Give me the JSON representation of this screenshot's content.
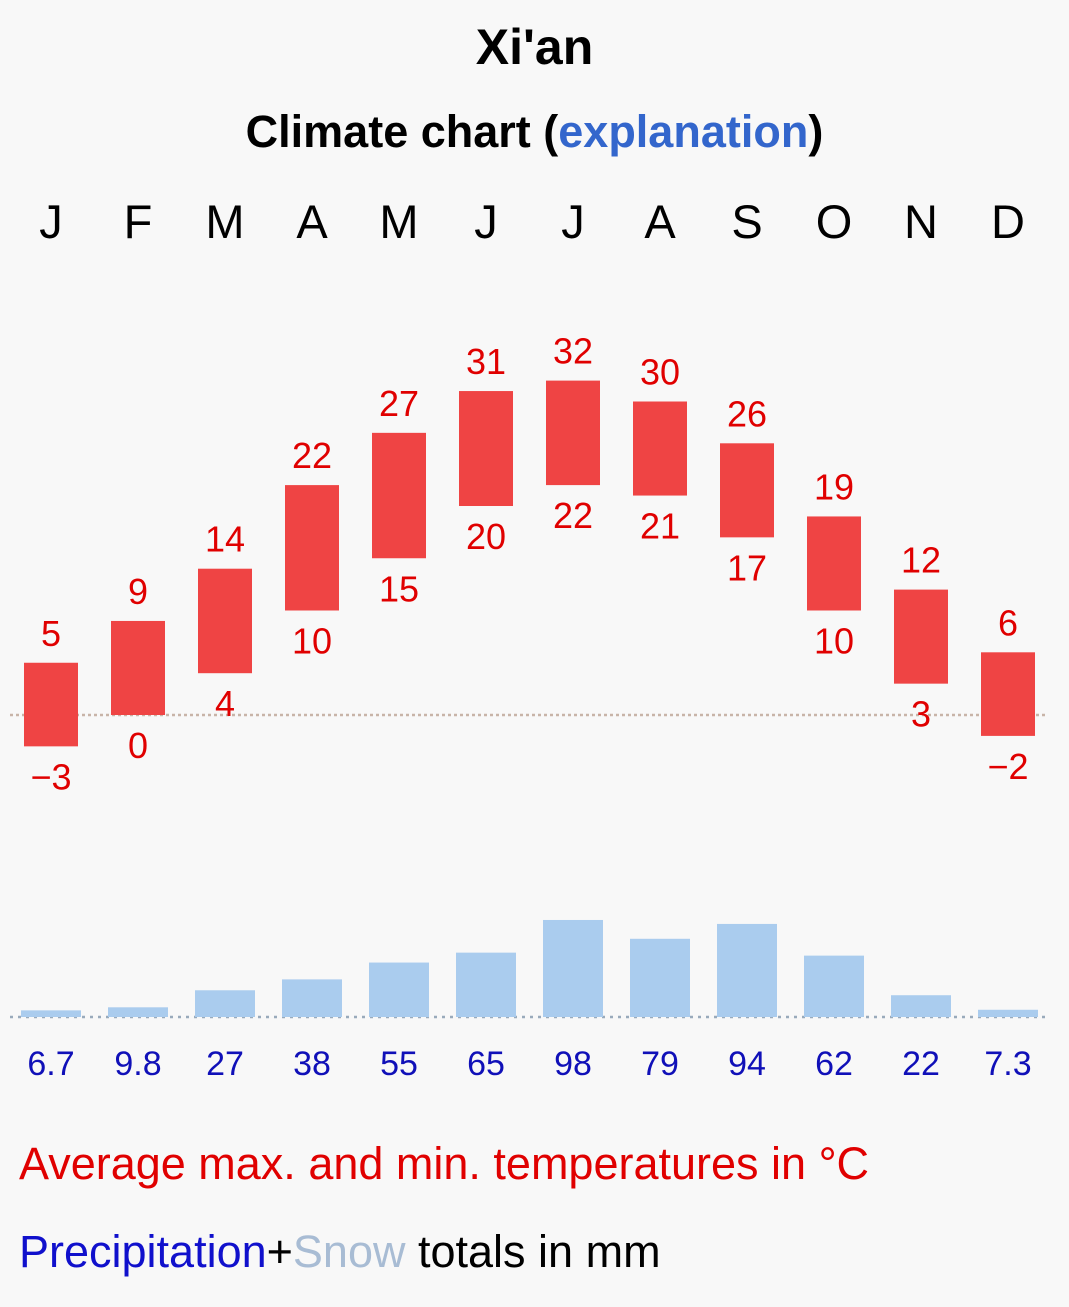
{
  "title": "Xi'an",
  "subtitle": {
    "prefix": "Climate chart (",
    "link": "explanation",
    "suffix": ")"
  },
  "chart_data": {
    "type": "bar",
    "categories": [
      "J",
      "F",
      "M",
      "A",
      "M",
      "J",
      "J",
      "A",
      "S",
      "O",
      "N",
      "D"
    ],
    "series": [
      {
        "values": [
          5,
          9,
          14,
          22,
          27,
          31,
          32,
          30,
          26,
          19,
          12,
          6
        ]
      },
      {
        "values": [
          -3,
          0,
          4,
          10,
          15,
          20,
          22,
          21,
          17,
          10,
          3,
          -2
        ]
      },
      {
        "values": [
          6.7,
          9.8,
          27,
          38,
          55,
          65,
          98,
          79,
          94,
          62,
          22,
          7.3
        ]
      }
    ],
    "temp_labels_max": [
      "5",
      "9",
      "14",
      "22",
      "27",
      "31",
      "32",
      "30",
      "26",
      "19",
      "12",
      "6"
    ],
    "temp_labels_min": [
      "−3",
      "0",
      "4",
      "10",
      "15",
      "20",
      "22",
      "21",
      "17",
      "10",
      "3",
      "−2"
    ],
    "precip_labels": [
      "6.7",
      "9.8",
      "27",
      "38",
      "55",
      "65",
      "98",
      "79",
      "94",
      "62",
      "22",
      "7.3"
    ],
    "colors": {
      "temp_bar": "#ef4444",
      "temp_text": "#e00000",
      "precip_bar": "#aaccee",
      "precip_text": "#1010b8",
      "zero_line": "#c8b4a8",
      "precip_baseline": "#99aabb"
    },
    "grid": false
  },
  "legend": {
    "temperature": "Average max. and min. temperatures in °C",
    "precipitation": "Precipitation",
    "plus": "+",
    "snow": "Snow",
    "precip_suffix": " totals in mm"
  }
}
